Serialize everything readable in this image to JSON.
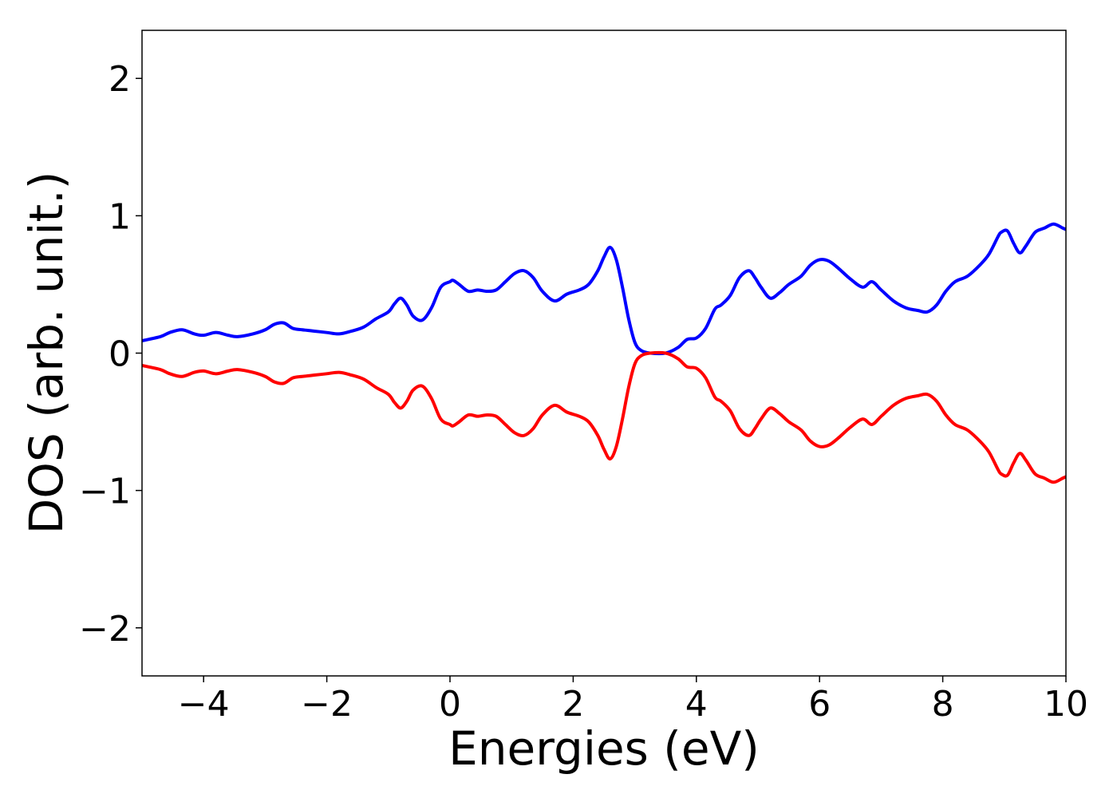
{
  "chart_data": {
    "type": "line",
    "title": "",
    "xlabel": "Energies (eV)",
    "ylabel": "DOS (arb. unit.)",
    "xlim": [
      -5,
      10
    ],
    "ylim": [
      -2.35,
      2.35
    ],
    "x_ticks": [
      -4,
      -2,
      0,
      2,
      4,
      6,
      8,
      10
    ],
    "x_tick_labels": [
      "−4",
      "−2",
      "0",
      "2",
      "4",
      "6",
      "8",
      "10"
    ],
    "y_ticks": [
      -2,
      -1,
      0,
      1,
      2
    ],
    "y_tick_labels": [
      "−2",
      "−1",
      "0",
      "1",
      "2"
    ],
    "grid": false,
    "legend": "none",
    "series": [
      {
        "color": "#0000ff",
        "x": [
          -5.0,
          -4.7,
          -4.55,
          -4.35,
          -4.15,
          -4.0,
          -3.8,
          -3.6,
          -3.45,
          -3.2,
          -3.0,
          -2.85,
          -2.7,
          -2.55,
          -2.4,
          -2.2,
          -2.0,
          -1.8,
          -1.6,
          -1.4,
          -1.2,
          -1.0,
          -0.9,
          -0.8,
          -0.7,
          -0.6,
          -0.45,
          -0.3,
          -0.15,
          0.0,
          0.05,
          0.15,
          0.3,
          0.45,
          0.6,
          0.75,
          0.9,
          1.05,
          1.2,
          1.35,
          1.5,
          1.7,
          1.9,
          2.1,
          2.25,
          2.4,
          2.5,
          2.6,
          2.7,
          2.8,
          2.9,
          3.0,
          3.1,
          3.25,
          3.5,
          3.7,
          3.85,
          4.0,
          4.15,
          4.3,
          4.4,
          4.55,
          4.7,
          4.85,
          4.95,
          5.05,
          5.2,
          5.35,
          5.5,
          5.7,
          5.85,
          6.0,
          6.15,
          6.3,
          6.5,
          6.7,
          6.85,
          7.0,
          7.2,
          7.4,
          7.6,
          7.75,
          7.9,
          8.05,
          8.2,
          8.4,
          8.6,
          8.75,
          8.9,
          8.95,
          9.05,
          9.15,
          9.25,
          9.35,
          9.5,
          9.65,
          9.8,
          9.95,
          10.0
        ],
        "y": [
          0.09,
          0.12,
          0.15,
          0.17,
          0.14,
          0.13,
          0.15,
          0.13,
          0.12,
          0.14,
          0.17,
          0.21,
          0.22,
          0.18,
          0.17,
          0.16,
          0.15,
          0.14,
          0.16,
          0.19,
          0.25,
          0.3,
          0.36,
          0.4,
          0.35,
          0.27,
          0.24,
          0.33,
          0.48,
          0.52,
          0.53,
          0.5,
          0.45,
          0.46,
          0.45,
          0.46,
          0.52,
          0.58,
          0.6,
          0.55,
          0.45,
          0.38,
          0.43,
          0.46,
          0.5,
          0.6,
          0.7,
          0.77,
          0.68,
          0.48,
          0.25,
          0.08,
          0.02,
          0.0,
          0.0,
          0.04,
          0.1,
          0.11,
          0.18,
          0.32,
          0.35,
          0.42,
          0.55,
          0.6,
          0.55,
          0.48,
          0.4,
          0.44,
          0.5,
          0.56,
          0.64,
          0.68,
          0.67,
          0.62,
          0.54,
          0.48,
          0.52,
          0.46,
          0.38,
          0.33,
          0.31,
          0.3,
          0.35,
          0.45,
          0.52,
          0.56,
          0.64,
          0.72,
          0.85,
          0.88,
          0.89,
          0.8,
          0.73,
          0.78,
          0.88,
          0.91,
          0.94,
          0.91,
          0.9
        ]
      },
      {
        "color": "#ff0000",
        "x": [
          -5.0,
          -4.7,
          -4.55,
          -4.35,
          -4.15,
          -4.0,
          -3.8,
          -3.6,
          -3.45,
          -3.2,
          -3.0,
          -2.85,
          -2.7,
          -2.55,
          -2.4,
          -2.2,
          -2.0,
          -1.8,
          -1.6,
          -1.4,
          -1.2,
          -1.0,
          -0.9,
          -0.8,
          -0.7,
          -0.6,
          -0.45,
          -0.3,
          -0.15,
          0.0,
          0.05,
          0.15,
          0.3,
          0.45,
          0.6,
          0.75,
          0.9,
          1.05,
          1.2,
          1.35,
          1.5,
          1.7,
          1.9,
          2.1,
          2.25,
          2.4,
          2.5,
          2.6,
          2.7,
          2.8,
          2.9,
          3.0,
          3.1,
          3.25,
          3.5,
          3.7,
          3.85,
          4.0,
          4.15,
          4.3,
          4.4,
          4.55,
          4.7,
          4.85,
          4.95,
          5.05,
          5.2,
          5.35,
          5.5,
          5.7,
          5.85,
          6.0,
          6.15,
          6.3,
          6.5,
          6.7,
          6.85,
          7.0,
          7.2,
          7.4,
          7.6,
          7.75,
          7.9,
          8.05,
          8.2,
          8.4,
          8.6,
          8.75,
          8.9,
          8.95,
          9.05,
          9.15,
          9.25,
          9.35,
          9.5,
          9.65,
          9.8,
          9.95,
          10.0
        ],
        "y": [
          -0.09,
          -0.12,
          -0.15,
          -0.17,
          -0.14,
          -0.13,
          -0.15,
          -0.13,
          -0.12,
          -0.14,
          -0.17,
          -0.21,
          -0.22,
          -0.18,
          -0.17,
          -0.16,
          -0.15,
          -0.14,
          -0.16,
          -0.19,
          -0.25,
          -0.3,
          -0.36,
          -0.4,
          -0.35,
          -0.27,
          -0.24,
          -0.33,
          -0.48,
          -0.52,
          -0.53,
          -0.5,
          -0.45,
          -0.46,
          -0.45,
          -0.46,
          -0.52,
          -0.58,
          -0.6,
          -0.55,
          -0.45,
          -0.38,
          -0.43,
          -0.46,
          -0.5,
          -0.6,
          -0.7,
          -0.77,
          -0.68,
          -0.48,
          -0.25,
          -0.08,
          -0.02,
          0.0,
          0.0,
          -0.04,
          -0.1,
          -0.11,
          -0.18,
          -0.32,
          -0.35,
          -0.42,
          -0.55,
          -0.6,
          -0.55,
          -0.48,
          -0.4,
          -0.44,
          -0.5,
          -0.56,
          -0.64,
          -0.68,
          -0.67,
          -0.62,
          -0.54,
          -0.48,
          -0.52,
          -0.46,
          -0.38,
          -0.33,
          -0.31,
          -0.3,
          -0.35,
          -0.45,
          -0.52,
          -0.56,
          -0.64,
          -0.72,
          -0.85,
          -0.88,
          -0.89,
          -0.8,
          -0.73,
          -0.78,
          -0.88,
          -0.91,
          -0.94,
          -0.91,
          -0.9
        ]
      }
    ]
  }
}
